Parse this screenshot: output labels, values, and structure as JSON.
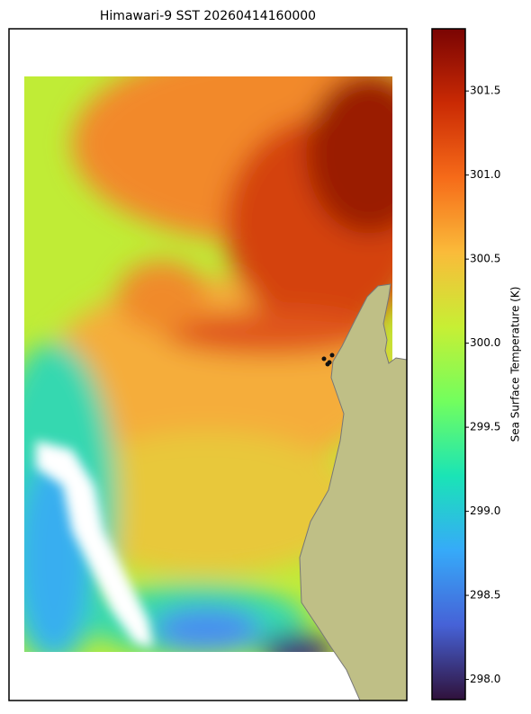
{
  "chart_data": {
    "type": "map",
    "title": "Himawari-9 SST 20260414160000",
    "colorbar": {
      "label": "Sea Surface Temperature (K)",
      "lim": [
        297.88,
        301.87
      ],
      "ticks": [
        {
          "value": 298,
          "label": "298.0"
        },
        298.5,
        {
          "value": 299,
          "label": "299.0"
        },
        299.5,
        {
          "value": 300,
          "label": "300.0"
        },
        300.5,
        {
          "value": 301,
          "label": "301.0"
        },
        301.5
      ],
      "colors": [
        "#30123b",
        "#4662d7",
        "#36aaf9",
        "#1ae4b6",
        "#72fe5e",
        "#c7ef34",
        "#fabb3a",
        "#f66b19",
        "#ca2a04",
        "#7a0403"
      ]
    }
  }
}
